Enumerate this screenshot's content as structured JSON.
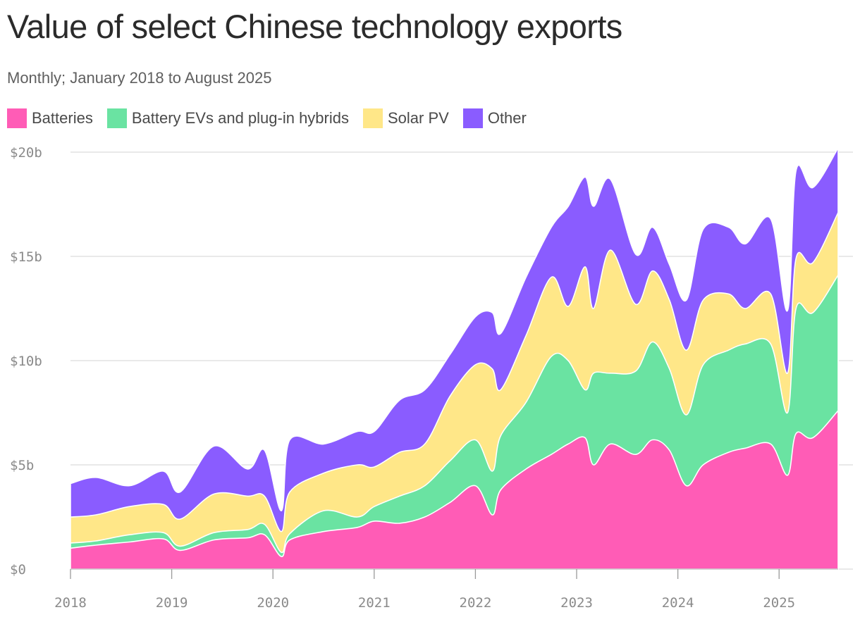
{
  "title": "Value of select Chinese technology exports",
  "subtitle": "Monthly; January 2018 to August 2025",
  "chart_data": {
    "type": "area",
    "stacked": true,
    "title": "Value of select Chinese technology exports",
    "subtitle": "Monthly; January 2018 to August 2025",
    "x_start": "2018-01",
    "x_end": "2025-08",
    "x_ticks": [
      "2018",
      "2019",
      "2020",
      "2021",
      "2022",
      "2023",
      "2024",
      "2025"
    ],
    "y_ticks": [
      "$0",
      "$5b",
      "$10b",
      "$15b",
      "$20b"
    ],
    "y_tick_values": [
      0,
      5,
      10,
      15,
      20
    ],
    "ylim": [
      0,
      20
    ],
    "y_unit": "billion USD",
    "grid": true,
    "legend_placement": "top-left",
    "series": [
      {
        "name": "Batteries",
        "color": "#ff5cb6",
        "points": [
          [
            "2018-01",
            1.0
          ],
          [
            "2018-04",
            1.15
          ],
          [
            "2018-08",
            1.3
          ],
          [
            "2018-12",
            1.45
          ],
          [
            "2019-02",
            0.9
          ],
          [
            "2019-06",
            1.4
          ],
          [
            "2019-10",
            1.5
          ],
          [
            "2019-12",
            1.65
          ],
          [
            "2020-02",
            0.6
          ],
          [
            "2020-03",
            1.4
          ],
          [
            "2020-07",
            1.8
          ],
          [
            "2020-11",
            2.0
          ],
          [
            "2021-01",
            2.3
          ],
          [
            "2021-04",
            2.2
          ],
          [
            "2021-07",
            2.5
          ],
          [
            "2021-10",
            3.2
          ],
          [
            "2022-01",
            4.0
          ],
          [
            "2022-03",
            2.6
          ],
          [
            "2022-04",
            3.8
          ],
          [
            "2022-07",
            4.8
          ],
          [
            "2022-10",
            5.5
          ],
          [
            "2022-12",
            6.0
          ],
          [
            "2023-02",
            6.3
          ],
          [
            "2023-03",
            5.0
          ],
          [
            "2023-05",
            6.0
          ],
          [
            "2023-08",
            5.5
          ],
          [
            "2023-10",
            6.2
          ],
          [
            "2023-12",
            5.7
          ],
          [
            "2024-02",
            4.0
          ],
          [
            "2024-04",
            5.0
          ],
          [
            "2024-07",
            5.6
          ],
          [
            "2024-09",
            5.8
          ],
          [
            "2024-12",
            6.0
          ],
          [
            "2025-02",
            4.5
          ],
          [
            "2025-03",
            6.5
          ],
          [
            "2025-05",
            6.3
          ],
          [
            "2025-08",
            7.6
          ]
        ]
      },
      {
        "name": "Battery EVs and plug-in hybrids",
        "color": "#6ae3a2",
        "points": [
          [
            "2018-01",
            1.25
          ],
          [
            "2018-04",
            1.35
          ],
          [
            "2018-08",
            1.65
          ],
          [
            "2018-12",
            1.75
          ],
          [
            "2019-02",
            1.1
          ],
          [
            "2019-06",
            1.75
          ],
          [
            "2019-10",
            1.9
          ],
          [
            "2019-12",
            2.15
          ],
          [
            "2020-02",
            0.8
          ],
          [
            "2020-03",
            1.7
          ],
          [
            "2020-07",
            2.8
          ],
          [
            "2020-11",
            2.5
          ],
          [
            "2021-01",
            3.0
          ],
          [
            "2021-04",
            3.5
          ],
          [
            "2021-07",
            4.0
          ],
          [
            "2021-10",
            5.2
          ],
          [
            "2022-01",
            6.2
          ],
          [
            "2022-03",
            4.7
          ],
          [
            "2022-04",
            6.4
          ],
          [
            "2022-07",
            8.0
          ],
          [
            "2022-10",
            10.2
          ],
          [
            "2022-12",
            10.0
          ],
          [
            "2023-02",
            8.6
          ],
          [
            "2023-03",
            9.4
          ],
          [
            "2023-05",
            9.4
          ],
          [
            "2023-08",
            9.5
          ],
          [
            "2023-10",
            10.9
          ],
          [
            "2023-12",
            9.6
          ],
          [
            "2024-02",
            7.4
          ],
          [
            "2024-04",
            9.8
          ],
          [
            "2024-07",
            10.5
          ],
          [
            "2024-09",
            10.8
          ],
          [
            "2024-12",
            10.8
          ],
          [
            "2025-02",
            7.5
          ],
          [
            "2025-03",
            12.5
          ],
          [
            "2025-05",
            12.3
          ],
          [
            "2025-08",
            14.1
          ]
        ]
      },
      {
        "name": "Solar PV",
        "color": "#ffe788",
        "points": [
          [
            "2018-01",
            2.5
          ],
          [
            "2018-04",
            2.6
          ],
          [
            "2018-08",
            3.0
          ],
          [
            "2018-12",
            3.1
          ],
          [
            "2019-02",
            2.4
          ],
          [
            "2019-06",
            3.6
          ],
          [
            "2019-10",
            3.5
          ],
          [
            "2019-12",
            3.5
          ],
          [
            "2020-02",
            1.8
          ],
          [
            "2020-03",
            3.7
          ],
          [
            "2020-07",
            4.6
          ],
          [
            "2020-11",
            5.0
          ],
          [
            "2021-01",
            4.9
          ],
          [
            "2021-04",
            5.6
          ],
          [
            "2021-07",
            6.0
          ],
          [
            "2021-10",
            8.3
          ],
          [
            "2022-01",
            9.8
          ],
          [
            "2022-03",
            9.6
          ],
          [
            "2022-04",
            8.6
          ],
          [
            "2022-07",
            11.2
          ],
          [
            "2022-10",
            14.0
          ],
          [
            "2022-12",
            12.6
          ],
          [
            "2023-02",
            14.5
          ],
          [
            "2023-03",
            12.5
          ],
          [
            "2023-05",
            15.3
          ],
          [
            "2023-08",
            12.7
          ],
          [
            "2023-10",
            14.3
          ],
          [
            "2023-12",
            12.9
          ],
          [
            "2024-02",
            10.5
          ],
          [
            "2024-04",
            12.9
          ],
          [
            "2024-07",
            13.2
          ],
          [
            "2024-09",
            12.5
          ],
          [
            "2024-12",
            13.2
          ],
          [
            "2025-02",
            9.4
          ],
          [
            "2025-03",
            14.9
          ],
          [
            "2025-05",
            14.7
          ],
          [
            "2025-08",
            17.1
          ]
        ]
      },
      {
        "name": "Other",
        "color": "#8a5cff",
        "points": [
          [
            "2018-01",
            4.1
          ],
          [
            "2018-04",
            4.4
          ],
          [
            "2018-08",
            4.0
          ],
          [
            "2018-12",
            4.7
          ],
          [
            "2019-02",
            3.7
          ],
          [
            "2019-06",
            5.9
          ],
          [
            "2019-10",
            4.8
          ],
          [
            "2019-12",
            5.7
          ],
          [
            "2020-02",
            2.8
          ],
          [
            "2020-03",
            6.2
          ],
          [
            "2020-07",
            6.0
          ],
          [
            "2020-11",
            6.6
          ],
          [
            "2021-01",
            6.6
          ],
          [
            "2021-04",
            8.1
          ],
          [
            "2021-07",
            8.6
          ],
          [
            "2021-10",
            10.3
          ],
          [
            "2022-01",
            12.1
          ],
          [
            "2022-03",
            12.3
          ],
          [
            "2022-04",
            11.3
          ],
          [
            "2022-07",
            14.0
          ],
          [
            "2022-10",
            16.4
          ],
          [
            "2022-12",
            17.4
          ],
          [
            "2023-02",
            18.8
          ],
          [
            "2023-03",
            17.4
          ],
          [
            "2023-05",
            18.7
          ],
          [
            "2023-08",
            15.1
          ],
          [
            "2023-10",
            16.4
          ],
          [
            "2023-12",
            14.6
          ],
          [
            "2024-02",
            12.9
          ],
          [
            "2024-04",
            16.3
          ],
          [
            "2024-07",
            16.4
          ],
          [
            "2024-09",
            15.6
          ],
          [
            "2024-12",
            16.8
          ],
          [
            "2025-02",
            12.4
          ],
          [
            "2025-03",
            19.1
          ],
          [
            "2025-05",
            18.3
          ],
          [
            "2025-08",
            20.2
          ]
        ]
      }
    ]
  }
}
